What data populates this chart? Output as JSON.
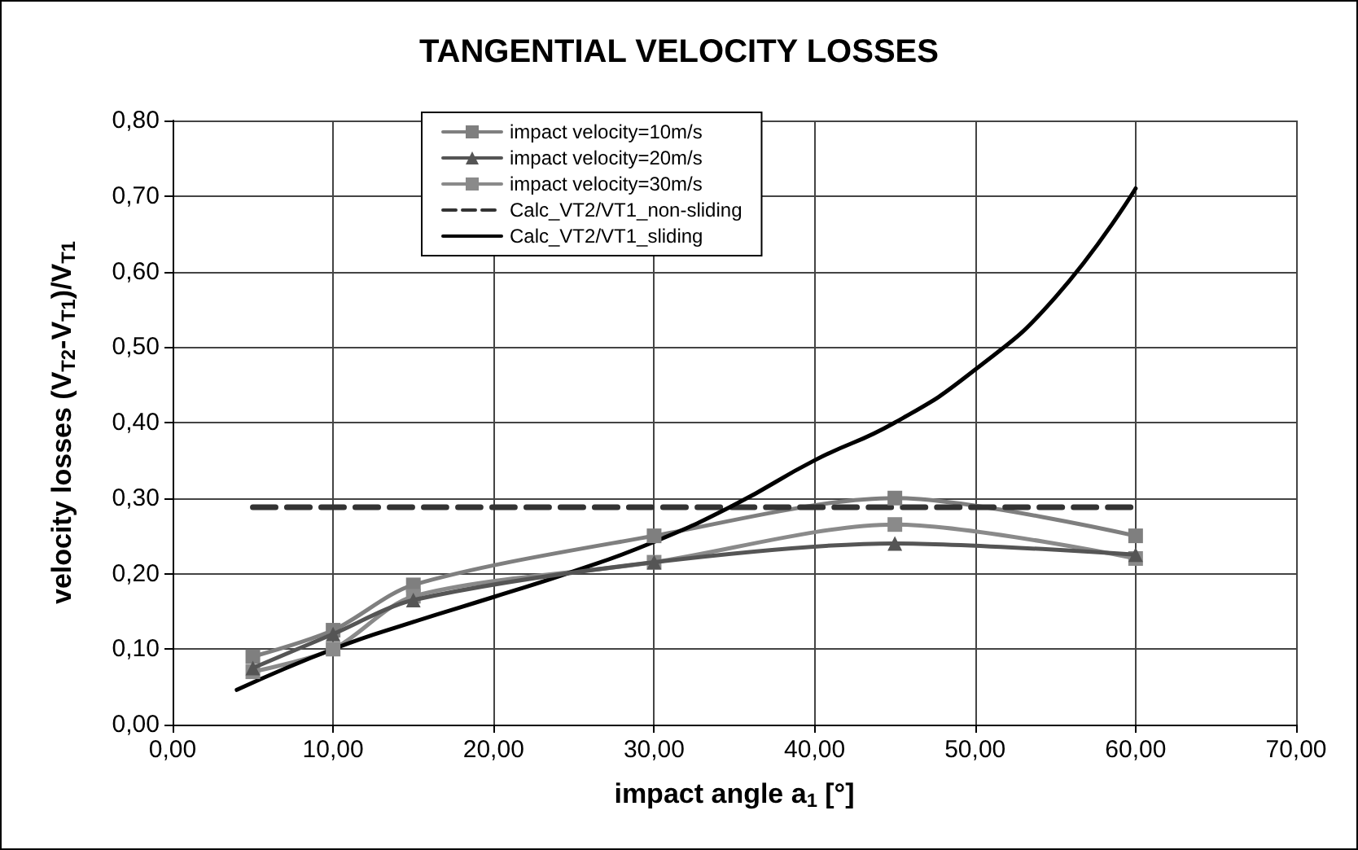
{
  "chart_data": {
    "type": "line",
    "title": "TANGENTIAL VELOCITY LOSSES",
    "xlabel": "impact angle a$_{1}$ [°]",
    "ylabel": "velocity losses (V$_{T2}$-V$_{T1}$)/V$_{T1}$",
    "series": [
      {
        "name": "impact velocity=10m/s",
        "color": "#7f7f7f",
        "marker": "square",
        "x": [
          5,
          10,
          15,
          30,
          45,
          60
        ],
        "values": [
          0.09,
          0.125,
          0.185,
          0.25,
          0.3,
          0.25
        ]
      },
      {
        "name": "impact velocity=20m/s",
        "color": "#555555",
        "marker": "triangle",
        "x": [
          5,
          10,
          15,
          30,
          45,
          60
        ],
        "values": [
          0.075,
          0.12,
          0.165,
          0.215,
          0.24,
          0.225
        ]
      },
      {
        "name": "impact velocity=30m/s",
        "color": "#8a8a8a",
        "marker": "square",
        "x": [
          5,
          10,
          15,
          30,
          45,
          60
        ],
        "values": [
          0.07,
          0.1,
          0.17,
          0.215,
          0.265,
          0.22
        ]
      },
      {
        "name": "Calc_VT2/VT1_non-sliding",
        "color": "#333333",
        "marker": "none",
        "line_style": "dashed",
        "x": [
          5,
          60
        ],
        "values": [
          0.288,
          0.288
        ]
      },
      {
        "name": "Calc_VT2/VT1_sliding",
        "color": "#000000",
        "marker": "none",
        "line_style": "solid",
        "x": [
          4,
          10,
          15,
          20,
          25,
          30,
          35,
          40,
          45,
          50,
          55,
          60
        ],
        "values": [
          0.046,
          0.1,
          0.136,
          0.169,
          0.203,
          0.242,
          0.291,
          0.35,
          0.4,
          0.47,
          0.566,
          0.71
        ]
      }
    ],
    "xlim": [
      0,
      70
    ],
    "xticks": [
      {
        "value": 0,
        "label": "0,00"
      },
      {
        "value": 10,
        "label": "10,00"
      },
      {
        "value": 20,
        "label": "20,00"
      },
      {
        "value": 30,
        "label": "30,00"
      },
      {
        "value": 40,
        "label": "40,00"
      },
      {
        "value": 50,
        "label": "50,00"
      },
      {
        "value": 60,
        "label": "60,00"
      },
      {
        "value": 70,
        "label": "70,00"
      }
    ],
    "ylim": [
      0,
      0.8
    ],
    "yticks": [
      {
        "value": 0,
        "label": "0,00"
      },
      {
        "value": 0.1,
        "label": "0,10"
      },
      {
        "value": 0.2,
        "label": "0,20"
      },
      {
        "value": 0.3,
        "label": "0,30"
      },
      {
        "value": 0.4,
        "label": "0,40"
      },
      {
        "value": 0.5,
        "label": "0,50"
      },
      {
        "value": 0.6,
        "label": "0,60"
      },
      {
        "value": 0.7,
        "label": "0,70"
      },
      {
        "value": 0.8,
        "label": "0,80"
      }
    ],
    "grid": true,
    "legend": "top"
  }
}
